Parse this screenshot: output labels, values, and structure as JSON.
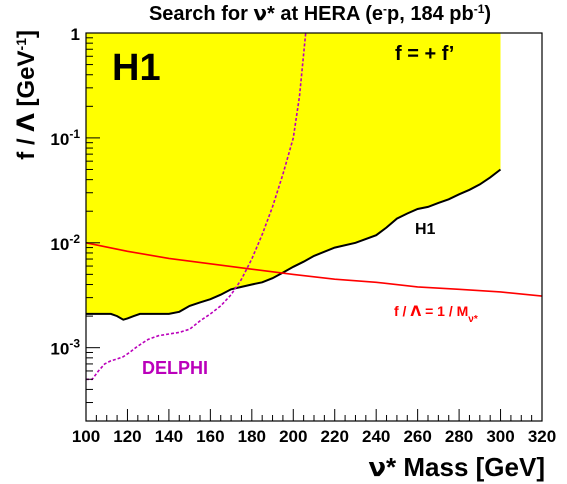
{
  "chart_data": {
    "type": "line",
    "title_parts": {
      "t1": "Search for ",
      "nu": "ν",
      "t2": "* at HERA (e",
      "sup1": "-",
      "t3": "p, 184 pb",
      "sup2": "-1",
      "t4": ")"
    },
    "experiment_label": "H1",
    "coupling_label": "f = + f’",
    "xlabel_parts": {
      "nu": "ν",
      "rest": "* Mass [GeV]"
    },
    "ylabel_parts": {
      "t1": "f / ",
      "lambda": "Λ",
      "t2": " [GeV",
      "sup": "-1",
      "t3": "]"
    },
    "x_range": [
      100,
      320
    ],
    "y_range": [
      0.0002,
      1
    ],
    "y_scale": "log",
    "x_ticks": [
      100,
      120,
      140,
      160,
      180,
      200,
      220,
      240,
      260,
      280,
      300,
      320
    ],
    "y_ticks": [
      {
        "value": 1,
        "label": "1",
        "sup": ""
      },
      {
        "value": 0.1,
        "label": "10",
        "sup": "-1"
      },
      {
        "value": 0.01,
        "label": "10",
        "sup": "-2"
      },
      {
        "value": 0.001,
        "label": "10",
        "sup": "-3"
      }
    ],
    "exclusion_region": {
      "color": "#ffff00",
      "boundary": [
        [
          100,
          0.0021
        ],
        [
          106,
          0.0021
        ],
        [
          110,
          0.0021
        ],
        [
          112,
          0.0021
        ],
        [
          115,
          0.002
        ],
        [
          118,
          0.00185
        ],
        [
          120,
          0.0019
        ],
        [
          123,
          0.002
        ],
        [
          126,
          0.0021
        ],
        [
          130,
          0.0021
        ],
        [
          140,
          0.0021
        ],
        [
          145,
          0.0022
        ],
        [
          150,
          0.0025
        ],
        [
          155,
          0.0027
        ],
        [
          160,
          0.0029
        ],
        [
          165,
          0.0032
        ],
        [
          170,
          0.0036
        ],
        [
          175,
          0.0038
        ],
        [
          180,
          0.004
        ],
        [
          185,
          0.0042
        ],
        [
          190,
          0.0046
        ],
        [
          195,
          0.0052
        ],
        [
          200,
          0.0059
        ],
        [
          205,
          0.0066
        ],
        [
          210,
          0.0075
        ],
        [
          220,
          0.009
        ],
        [
          230,
          0.01
        ],
        [
          240,
          0.0118
        ],
        [
          245,
          0.014
        ],
        [
          250,
          0.017
        ],
        [
          255,
          0.019
        ],
        [
          260,
          0.021
        ],
        [
          265,
          0.022
        ],
        [
          270,
          0.024
        ],
        [
          275,
          0.026
        ],
        [
          280,
          0.029
        ],
        [
          285,
          0.032
        ],
        [
          290,
          0.036
        ],
        [
          295,
          0.042
        ],
        [
          300,
          0.05
        ],
        [
          300,
          1
        ]
      ]
    },
    "series": [
      {
        "name": "H1",
        "color": "#000000",
        "style": "solid",
        "points": [
          [
            100,
            0.0021
          ],
          [
            106,
            0.0021
          ],
          [
            110,
            0.0021
          ],
          [
            112,
            0.0021
          ],
          [
            115,
            0.002
          ],
          [
            118,
            0.00185
          ],
          [
            120,
            0.0019
          ],
          [
            123,
            0.002
          ],
          [
            126,
            0.0021
          ],
          [
            130,
            0.0021
          ],
          [
            140,
            0.0021
          ],
          [
            145,
            0.0022
          ],
          [
            150,
            0.0025
          ],
          [
            155,
            0.0027
          ],
          [
            160,
            0.0029
          ],
          [
            165,
            0.0032
          ],
          [
            170,
            0.0036
          ],
          [
            175,
            0.0038
          ],
          [
            180,
            0.004
          ],
          [
            185,
            0.0042
          ],
          [
            190,
            0.0046
          ],
          [
            195,
            0.0052
          ],
          [
            200,
            0.0059
          ],
          [
            205,
            0.0066
          ],
          [
            210,
            0.0075
          ],
          [
            220,
            0.009
          ],
          [
            230,
            0.01
          ],
          [
            240,
            0.0118
          ],
          [
            245,
            0.014
          ],
          [
            250,
            0.017
          ],
          [
            255,
            0.019
          ],
          [
            260,
            0.021
          ],
          [
            265,
            0.022
          ],
          [
            270,
            0.024
          ],
          [
            275,
            0.026
          ],
          [
            280,
            0.029
          ],
          [
            285,
            0.032
          ],
          [
            290,
            0.036
          ],
          [
            295,
            0.042
          ],
          [
            300,
            0.05
          ]
        ]
      },
      {
        "name": "DELPHI",
        "color": "#bb00bb",
        "style": "dashed",
        "points": [
          [
            100,
            0.0005
          ],
          [
            103,
            0.0005
          ],
          [
            106,
            0.0006
          ],
          [
            109,
            0.0007
          ],
          [
            112,
            0.00075
          ],
          [
            115,
            0.00078
          ],
          [
            118,
            0.00082
          ],
          [
            121,
            0.0009
          ],
          [
            124,
            0.001
          ],
          [
            127,
            0.0011
          ],
          [
            130,
            0.0012
          ],
          [
            135,
            0.0013
          ],
          [
            140,
            0.00135
          ],
          [
            145,
            0.0014
          ],
          [
            150,
            0.0015
          ],
          [
            155,
            0.0018
          ],
          [
            160,
            0.0021
          ],
          [
            165,
            0.0025
          ],
          [
            170,
            0.0032
          ],
          [
            175,
            0.0045
          ],
          [
            180,
            0.007
          ],
          [
            185,
            0.012
          ],
          [
            190,
            0.022
          ],
          [
            195,
            0.045
          ],
          [
            200,
            0.1
          ],
          [
            203,
            0.25
          ],
          [
            206,
            1.0
          ]
        ]
      }
    ],
    "reference_line": {
      "color": "#ff0000",
      "points": [
        [
          100,
          0.01
        ],
        [
          120,
          0.0083
        ],
        [
          140,
          0.0071
        ],
        [
          160,
          0.0063
        ],
        [
          180,
          0.0056
        ],
        [
          200,
          0.005
        ],
        [
          220,
          0.0045
        ],
        [
          240,
          0.0042
        ],
        [
          260,
          0.0038
        ],
        [
          280,
          0.0036
        ],
        [
          300,
          0.0034
        ],
        [
          320,
          0.0031
        ]
      ],
      "label_parts": {
        "t1": "f / ",
        "lambda": "Λ",
        "t2": "  = 1 / M",
        "sub": "ν*"
      }
    },
    "annotations": {
      "h1_curve": "H1",
      "delphi_curve": "DELPHI"
    },
    "grid": false
  }
}
